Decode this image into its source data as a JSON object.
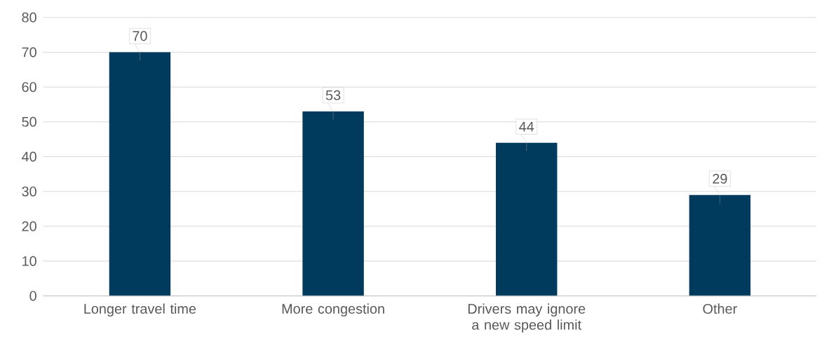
{
  "chart_data": {
    "type": "bar",
    "categories": [
      "Longer travel time",
      "More congestion",
      "Drivers may ignore a new speed limit",
      "Other"
    ],
    "values": [
      70,
      53,
      44,
      29
    ],
    "color": "#003a5c",
    "ylim": [
      0,
      80
    ],
    "yticks": [
      0,
      10,
      20,
      30,
      40,
      50,
      60,
      70,
      80
    ],
    "grid": "y",
    "data_labels": true
  }
}
